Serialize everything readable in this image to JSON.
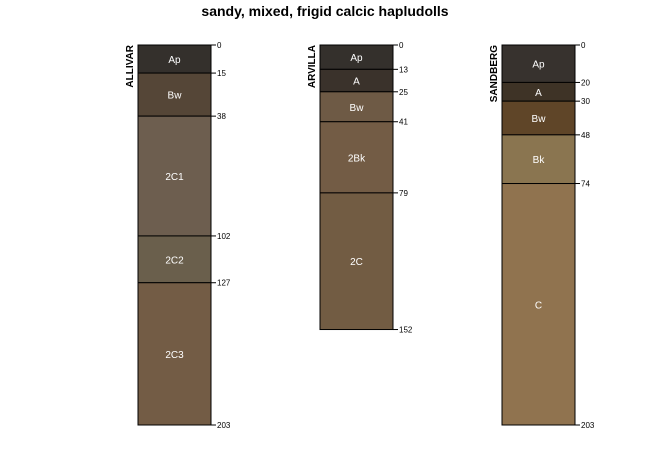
{
  "chart_data": {
    "type": "soil-profile",
    "title": "sandy, mixed, frigid calcic hapludolls",
    "depth_units": "cm",
    "profiles": [
      {
        "name": "ALLIVAR",
        "horizons": [
          {
            "name": "Ap",
            "top": 0,
            "bottom": 15,
            "color": "#34302c"
          },
          {
            "name": "Bw",
            "top": 15,
            "bottom": 38,
            "color": "#554637"
          },
          {
            "name": "2C1",
            "top": 38,
            "bottom": 102,
            "color": "#6d5e4f"
          },
          {
            "name": "2C2",
            "top": 102,
            "bottom": 127,
            "color": "#6a5f4c"
          },
          {
            "name": "2C3",
            "top": 127,
            "bottom": 203,
            "color": "#735c45"
          }
        ]
      },
      {
        "name": "ARVILLA",
        "horizons": [
          {
            "name": "Ap",
            "top": 0,
            "bottom": 13,
            "color": "#34302c"
          },
          {
            "name": "A",
            "top": 13,
            "bottom": 25,
            "color": "#3a322b"
          },
          {
            "name": "Bw",
            "top": 25,
            "bottom": 41,
            "color": "#6e5a45"
          },
          {
            "name": "2Bk",
            "top": 41,
            "bottom": 79,
            "color": "#735c45"
          },
          {
            "name": "2C",
            "top": 79,
            "bottom": 152,
            "color": "#725c43"
          }
        ]
      },
      {
        "name": "SANDBERG",
        "horizons": [
          {
            "name": "Ap",
            "top": 0,
            "bottom": 20,
            "color": "#37322e"
          },
          {
            "name": "A",
            "top": 20,
            "bottom": 30,
            "color": "#3e3326"
          },
          {
            "name": "Bw",
            "top": 30,
            "bottom": 48,
            "color": "#5f4528"
          },
          {
            "name": "Bk",
            "top": 48,
            "bottom": 74,
            "color": "#8a7550"
          },
          {
            "name": "C",
            "top": 74,
            "bottom": 203,
            "color": "#90734f"
          }
        ]
      }
    ]
  }
}
